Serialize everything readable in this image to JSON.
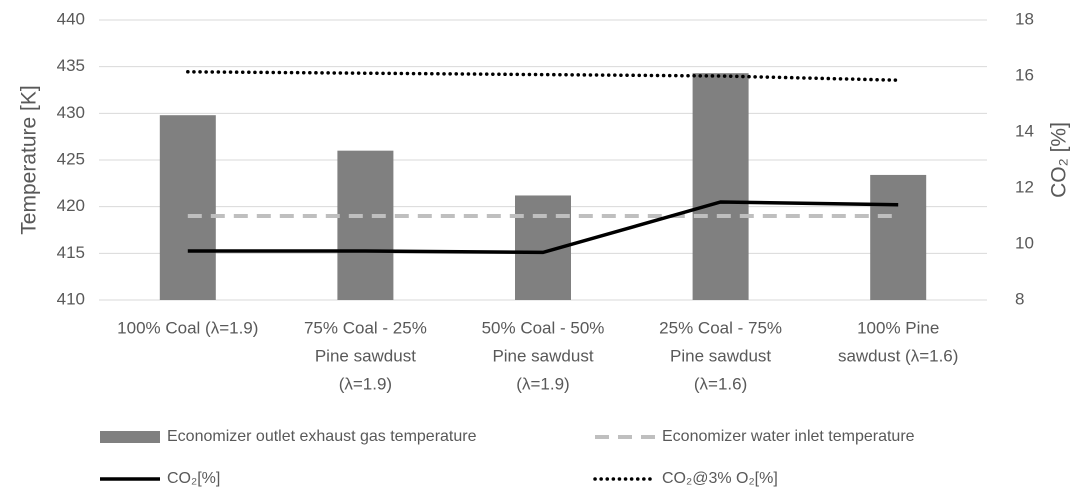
{
  "chart_data": {
    "type": "combo",
    "categories": [
      [
        "100% Coal (λ=1.9)"
      ],
      [
        "75% Coal - 25%",
        "Pine sawdust",
        "(λ=1.9)"
      ],
      [
        "50% Coal - 50%",
        "Pine sawdust",
        "(λ=1.9)"
      ],
      [
        "25% Coal - 75%",
        "Pine sawdust",
        "(λ=1.6)"
      ],
      [
        "100% Pine",
        "sawdust (λ=1.6)"
      ]
    ],
    "y_label": "Temperature [K]",
    "y2_label": "CO₂ [%]",
    "ylim": [
      410,
      440
    ],
    "yticks": [
      410,
      415,
      420,
      425,
      430,
      435,
      440
    ],
    "y2lim": [
      8,
      18
    ],
    "y2ticks": [
      8,
      10,
      12,
      14,
      16,
      18
    ],
    "grid": true,
    "series": [
      {
        "name": "Economizer outlet exhaust gas temperature",
        "type": "bar",
        "color": "#808080",
        "values": [
          429.8,
          426.0,
          421.2,
          434.3,
          423.4
        ]
      },
      {
        "name": "Economizer water inlet temperature",
        "type": "dashed",
        "color": "#bfbfbf",
        "values": [
          419,
          419,
          419,
          419,
          419
        ]
      },
      {
        "name": "CO₂[%]",
        "type": "solid",
        "color": "#000000",
        "axis": "y2",
        "values": [
          9.75,
          9.75,
          9.7,
          11.5,
          11.4
        ]
      },
      {
        "name": "CO₂@3% O₂[%]",
        "type": "dotted",
        "color": "#000000",
        "axis": "y2",
        "values": [
          16.15,
          16.1,
          16.05,
          16.0,
          15.85
        ]
      }
    ]
  }
}
